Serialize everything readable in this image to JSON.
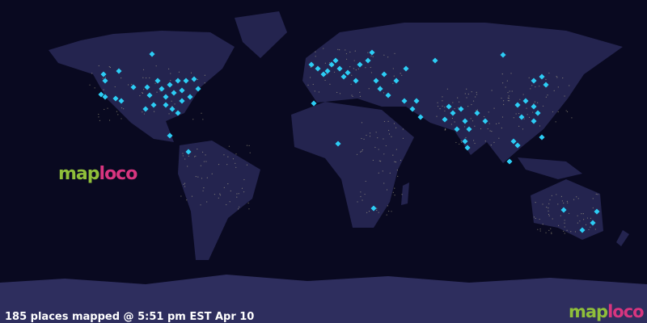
{
  "map_logo": {
    "left": "map",
    "right": "loco"
  },
  "status_text": "185 places mapped @ 5:51 pm EST Apr 10",
  "corner_logo": {
    "left": "map",
    "right": "loco"
  }
}
